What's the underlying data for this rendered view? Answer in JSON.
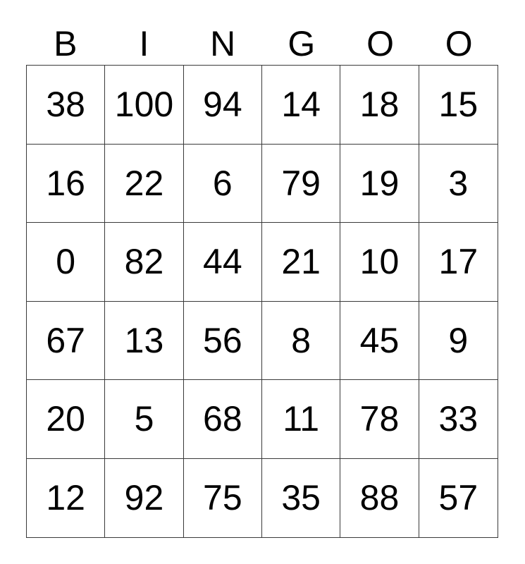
{
  "card": {
    "header_letters": [
      "B",
      "I",
      "N",
      "G",
      "O",
      "O"
    ],
    "grid_rows": [
      [
        "38",
        "100",
        "94",
        "14",
        "18",
        "15"
      ],
      [
        "16",
        "22",
        "6",
        "79",
        "19",
        "3"
      ],
      [
        "0",
        "82",
        "44",
        "21",
        "10",
        "17"
      ],
      [
        "67",
        "13",
        "56",
        "8",
        "45",
        "9"
      ],
      [
        "20",
        "5",
        "68",
        "11",
        "78",
        "33"
      ],
      [
        "12",
        "92",
        "75",
        "35",
        "88",
        "57"
      ]
    ],
    "colors": {
      "background": "#ffffff",
      "text": "#000000",
      "border": "#3a3a3a"
    }
  }
}
